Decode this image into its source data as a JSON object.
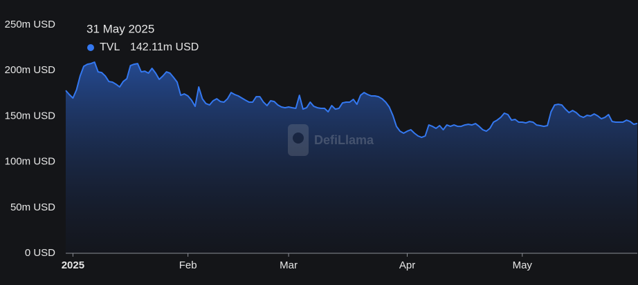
{
  "chart_data": {
    "type": "area",
    "watermark": "DefiLlama",
    "tooltip_title": "31 May 2025",
    "categories": [
      null,
      null,
      "2025",
      null,
      null,
      null,
      null,
      null,
      null,
      null,
      null,
      null,
      null,
      null,
      null,
      null,
      null,
      null,
      null,
      null,
      null,
      null,
      null,
      null,
      null,
      null,
      null,
      null,
      null,
      null,
      null,
      null,
      null,
      null,
      "Feb",
      null,
      null,
      null,
      null,
      null,
      null,
      null,
      null,
      null,
      null,
      null,
      null,
      null,
      null,
      null,
      null,
      null,
      null,
      null,
      null,
      null,
      null,
      null,
      null,
      null,
      null,
      null,
      "Mar",
      null,
      null,
      null,
      null,
      null,
      null,
      null,
      null,
      null,
      null,
      null,
      null,
      null,
      null,
      null,
      null,
      null,
      null,
      null,
      null,
      null,
      null,
      null,
      null,
      null,
      null,
      null,
      null,
      null,
      null,
      null,
      null,
      "Apr",
      null,
      null,
      null,
      null,
      null,
      null,
      null,
      null,
      null,
      null,
      null,
      null,
      null,
      null,
      null,
      null,
      null,
      null,
      null,
      null,
      null,
      null,
      null,
      null,
      null,
      null,
      null,
      null,
      null,
      null,
      null,
      "May",
      null,
      null,
      null,
      null,
      null,
      null,
      null,
      null,
      null,
      null,
      null,
      null,
      null,
      null,
      null,
      null,
      null,
      null,
      null,
      null,
      null,
      null,
      null,
      null,
      null,
      null,
      null,
      null,
      null,
      null,
      null,
      null
    ],
    "series": [
      {
        "name": "TVL",
        "color": "#3478f0",
        "values": [
          178.2,
          173.7,
          169.9,
          178.9,
          194.0,
          204.6,
          206.9,
          207.6,
          209.2,
          198.6,
          197.8,
          194.0,
          188.0,
          187.3,
          185.0,
          182.0,
          188.0,
          191.0,
          205.4,
          206.9,
          207.6,
          198.6,
          199.3,
          197.1,
          202.4,
          197.1,
          190.3,
          194.0,
          198.6,
          197.1,
          192.5,
          187.3,
          172.9,
          174.4,
          172.2,
          167.6,
          160.8,
          182.0,
          169.1,
          163.8,
          162.3,
          166.9,
          169.1,
          166.1,
          165.4,
          169.1,
          175.9,
          173.7,
          172.2,
          169.9,
          167.6,
          165.4,
          165.4,
          171.4,
          171.4,
          165.4,
          161.6,
          166.9,
          166.1,
          162.3,
          160.1,
          159.3,
          160.1,
          159.3,
          158.6,
          172.9,
          157.8,
          159.3,
          165.4,
          160.8,
          159.3,
          158.6,
          158.6,
          154.8,
          161.6,
          157.8,
          158.6,
          164.6,
          165.4,
          165.4,
          168.4,
          163.1,
          172.9,
          175.9,
          173.7,
          172.2,
          172.2,
          171.4,
          169.1,
          165.4,
          160.1,
          151.0,
          138.9,
          133.6,
          131.4,
          133.6,
          135.2,
          131.4,
          128.4,
          126.8,
          128.4,
          140.4,
          138.9,
          136.7,
          139.7,
          135.2,
          140.4,
          138.9,
          140.4,
          138.9,
          138.9,
          140.4,
          141.2,
          140.4,
          141.9,
          138.9,
          135.2,
          133.6,
          136.7,
          143.5,
          145.7,
          148.7,
          153.3,
          151.8,
          145.7,
          146.5,
          143.5,
          143.5,
          142.7,
          144.2,
          143.5,
          140.4,
          139.7,
          138.9,
          139.7,
          154.8,
          162.3,
          163.1,
          162.3,
          157.8,
          154.0,
          156.3,
          154.0,
          150.3,
          148.7,
          151.0,
          150.3,
          152.5,
          150.3,
          147.2,
          148.7,
          151.8,
          144.2,
          143.5,
          143.5,
          143.5,
          145.7,
          144.2,
          141.2,
          142.11
        ],
        "value_labels": [
          null,
          null,
          null,
          null,
          null,
          null,
          null,
          null,
          null,
          null,
          null,
          null,
          null,
          null,
          null,
          null,
          null,
          null,
          null,
          null,
          null,
          null,
          null,
          null,
          null,
          null,
          null,
          null,
          null,
          null,
          null,
          null,
          null,
          null,
          null,
          null,
          null,
          null,
          null,
          null,
          null,
          null,
          null,
          null,
          null,
          null,
          null,
          null,
          null,
          null,
          null,
          null,
          null,
          null,
          null,
          null,
          null,
          null,
          null,
          null,
          null,
          null,
          null,
          null,
          null,
          null,
          null,
          null,
          null,
          null,
          null,
          null,
          null,
          null,
          null,
          null,
          null,
          null,
          null,
          null,
          null,
          null,
          null,
          null,
          null,
          null,
          null,
          null,
          null,
          null,
          null,
          null,
          null,
          null,
          null,
          null,
          null,
          null,
          null,
          null,
          null,
          null,
          null,
          null,
          null,
          null,
          null,
          null,
          null,
          null,
          null,
          null,
          null,
          null,
          null,
          null,
          null,
          null,
          null,
          null,
          null,
          null,
          null,
          null,
          null,
          null,
          null,
          null,
          null,
          null,
          null,
          null,
          null,
          null,
          null,
          null,
          null,
          null,
          null,
          null,
          null,
          null,
          null,
          null,
          null,
          null,
          null,
          null,
          null,
          null,
          null,
          null,
          null,
          null,
          null,
          null,
          null,
          null,
          null,
          "142.11m USD"
        ]
      }
    ],
    "ylim": [
      0,
      250
    ],
    "yticks": [
      {
        "value": 0,
        "label": "0 USD"
      },
      {
        "value": 50,
        "label": "50m USD"
      },
      {
        "value": 100,
        "label": "100m USD"
      },
      {
        "value": 150,
        "label": "150m USD"
      },
      {
        "value": 200,
        "label": "200m USD"
      },
      {
        "value": 250,
        "label": "250m USD"
      }
    ],
    "grid": false
  }
}
